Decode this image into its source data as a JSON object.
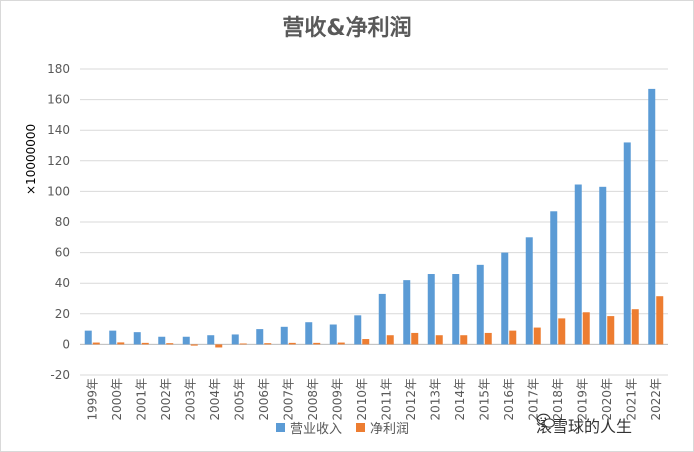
{
  "chart_data": {
    "type": "bar",
    "title": "营收&净利润",
    "ylabel": "×10000000",
    "xlabel": "",
    "ylim": [
      -20,
      180
    ],
    "ytick_step": 20,
    "grid": true,
    "legend_position": "bottom",
    "categories": [
      "1999年",
      "2000年",
      "2001年",
      "2002年",
      "2003年",
      "2004年",
      "2005年",
      "2006年",
      "2007年",
      "2008年",
      "2009年",
      "2010年",
      "2011年",
      "2012年",
      "2013年",
      "2014年",
      "2015年",
      "2016年",
      "2017年",
      "2018年",
      "2019年",
      "2020年",
      "2021年",
      "2022年"
    ],
    "series": [
      {
        "name": "营业收入",
        "color": "#5b9bd5",
        "values": [
          9,
          9,
          8,
          5,
          5,
          6,
          6.5,
          10,
          11.5,
          14.5,
          13,
          19,
          33,
          42,
          46,
          46,
          52,
          60,
          70,
          87,
          104.5,
          103,
          132,
          167
        ]
      },
      {
        "name": "净利润",
        "color": "#ed7d31",
        "values": [
          1.2,
          1.3,
          1,
          0.8,
          -0.8,
          -2,
          0.6,
          0.8,
          1,
          1,
          1.2,
          3.5,
          6,
          7.5,
          6,
          6,
          7.5,
          9,
          11,
          17,
          21,
          18.5,
          23,
          31.5
        ]
      }
    ]
  },
  "watermark": {
    "text": "滚雪球的人生",
    "icon": "wechat-icon"
  }
}
